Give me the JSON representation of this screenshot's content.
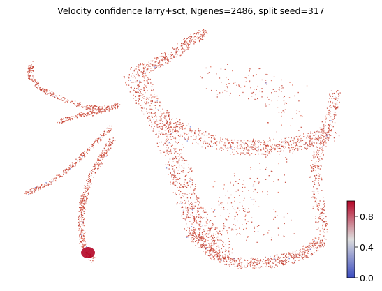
{
  "chart_data": {
    "type": "scatter",
    "title": "Velocity confidence larry+sct, Ngenes=2486, split seed=317",
    "xlabel": "",
    "ylabel": "",
    "grid": false,
    "axes_visible": false,
    "colormap": "coolwarm",
    "colorbar": {
      "location": "right",
      "min": 0.0,
      "max": 1.0,
      "ticks": [
        0.0,
        0.4,
        0.8
      ],
      "tick_labels": [
        "0.0",
        "0.4",
        "0.8"
      ],
      "colors": [
        "#3b4cc0",
        "#dddddd",
        "#b40426"
      ]
    },
    "point_colors": {
      "dominant": "#c0392b",
      "secondary": "#e06a55",
      "rare_low": "#6a7fdb"
    },
    "embedding_ranges": {
      "x": [
        0,
        1
      ],
      "y": [
        0,
        1
      ]
    },
    "structures": [
      {
        "name": "upper-left branch",
        "confidence": 0.9
      },
      {
        "name": "left mid branch",
        "confidence": 0.88
      },
      {
        "name": "left lower branch",
        "confidence": 0.9
      },
      {
        "name": "left stem",
        "confidence": 0.95
      },
      {
        "name": "central diagonal band",
        "confidence": 0.93
      },
      {
        "name": "top arm",
        "confidence": 0.82
      },
      {
        "name": "right middle band",
        "confidence": 0.75
      },
      {
        "name": "right edge",
        "confidence": 0.8
      },
      {
        "name": "bottom arc",
        "confidence": 0.92
      },
      {
        "name": "interior sparse region",
        "confidence": 0.7
      }
    ]
  }
}
